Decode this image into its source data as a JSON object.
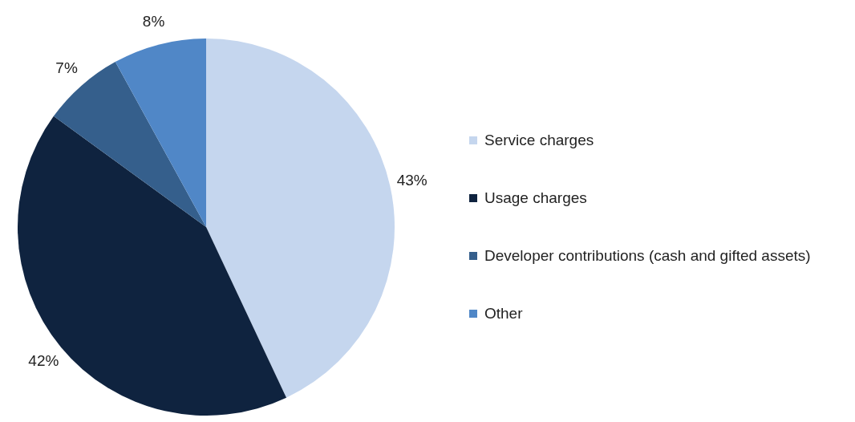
{
  "chart_data": {
    "type": "pie",
    "categories": [
      "Service charges",
      "Usage charges",
      "Developer contributions (cash and gifted assets)",
      "Other"
    ],
    "values": [
      43,
      42,
      7,
      8
    ],
    "colors": [
      "#c5d6ee",
      "#0f233f",
      "#355f8c",
      "#5087c7"
    ],
    "value_labels": [
      "43%",
      "42%",
      "7%",
      "8%"
    ],
    "legend": "right"
  }
}
